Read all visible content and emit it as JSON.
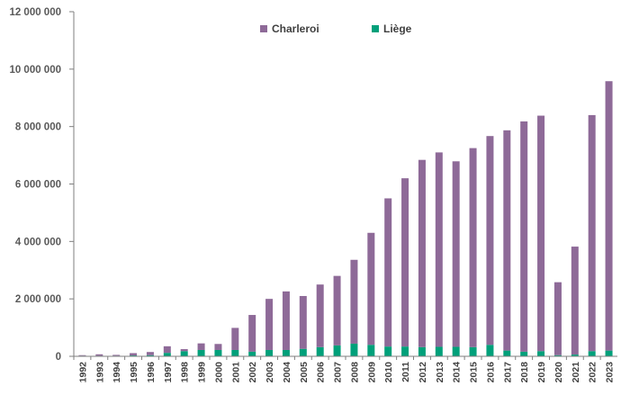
{
  "chart_data": {
    "type": "bar",
    "stacked": true,
    "categories": [
      "1992",
      "1993",
      "1994",
      "1995",
      "1996",
      "1997",
      "1998",
      "1999",
      "2000",
      "2001",
      "2002",
      "2003",
      "2004",
      "2005",
      "2006",
      "2007",
      "2008",
      "2009",
      "2010",
      "2011",
      "2012",
      "2013",
      "2014",
      "2015",
      "2016",
      "2017",
      "2018",
      "2019",
      "2020",
      "2021",
      "2022",
      "2023"
    ],
    "series": [
      {
        "name": "Liège",
        "color": "#00a07a",
        "values": [
          20000,
          20000,
          20000,
          30000,
          40000,
          120000,
          180000,
          220000,
          220000,
          220000,
          160000,
          220000,
          220000,
          260000,
          320000,
          380000,
          440000,
          400000,
          340000,
          340000,
          320000,
          330000,
          330000,
          320000,
          400000,
          200000,
          160000,
          180000,
          40000,
          60000,
          180000,
          200000
        ]
      },
      {
        "name": "Charleroi",
        "color": "#8e6a98",
        "values": [
          20000,
          50000,
          30000,
          80000,
          110000,
          230000,
          70000,
          230000,
          210000,
          770000,
          1280000,
          1780000,
          2040000,
          1840000,
          2180000,
          2420000,
          2920000,
          3900000,
          5160000,
          5860000,
          6520000,
          6770000,
          6460000,
          6930000,
          7270000,
          7670000,
          8020000,
          8200000,
          2540000,
          3760000,
          8220000,
          9380000
        ]
      }
    ],
    "ylim": [
      0,
      12000000
    ],
    "yticks": [
      0,
      2000000,
      4000000,
      6000000,
      8000000,
      10000000,
      12000000
    ],
    "ytick_labels": [
      "0",
      "2 000 000",
      "4 000 000",
      "6 000 000",
      "8 000 000",
      "10 000 000",
      "12 000 000"
    ],
    "legend_order": [
      "Charleroi",
      "Liège"
    ],
    "legend_position": "top-center",
    "grid": false,
    "title": "",
    "xlabel": "",
    "ylabel": ""
  }
}
